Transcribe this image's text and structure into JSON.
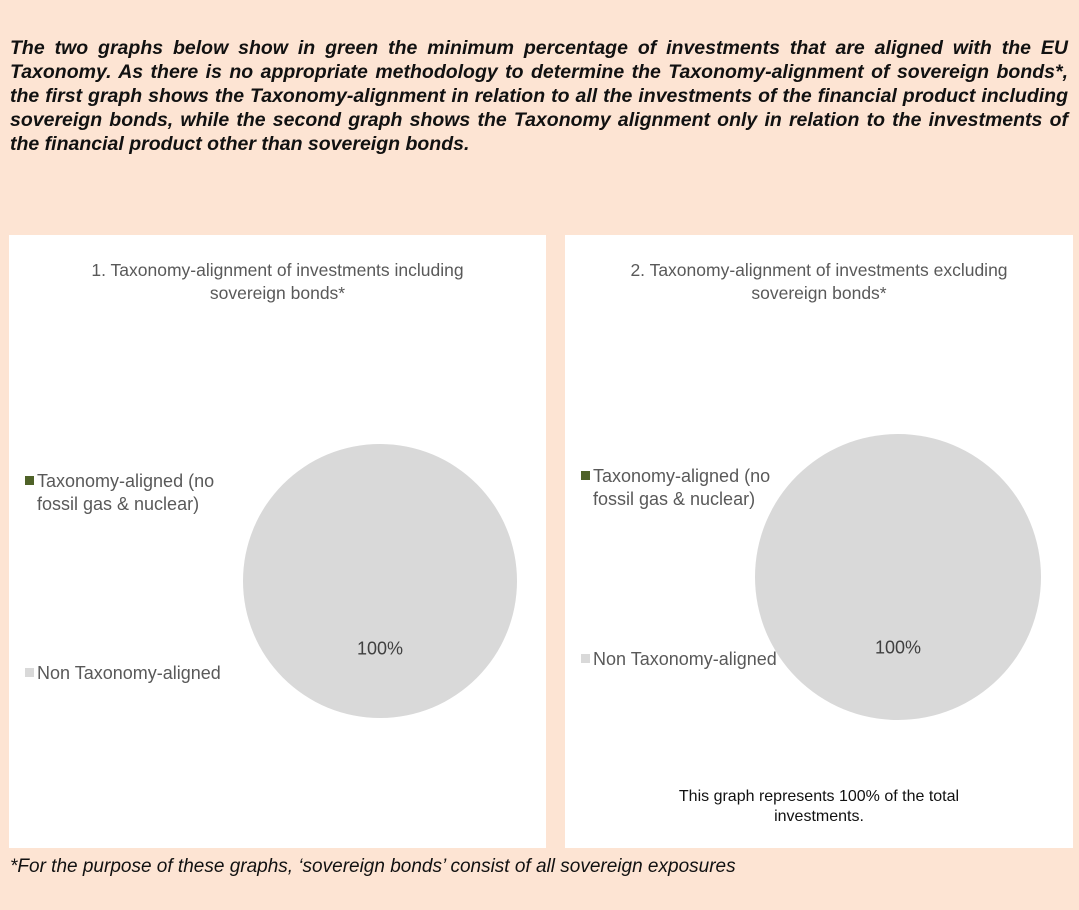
{
  "intro": "The two graphs below show in green the minimum percentage of investments that are aligned with the EU Taxonomy. As there is no appropriate methodology to determine the Taxonomy-alignment of sovereign bonds*, the first graph shows the Taxonomy-alignment in relation to all the investments of the financial product including sovereign bonds, while the second graph shows the Taxonomy alignment only in relation to the investments of the financial product other than sovereign bonds.",
  "chart_data": [
    {
      "type": "pie",
      "title": "1. Taxonomy-alignment of investments including sovereign bonds*",
      "categories": [
        "Taxonomy-aligned (no fossil gas & nuclear)",
        "Non Taxonomy-aligned"
      ],
      "values": [
        0,
        100
      ],
      "value_labels": [
        null,
        "100%"
      ],
      "colors": [
        "#4f6228",
        "#d9d9d9"
      ]
    },
    {
      "type": "pie",
      "title": "2. Taxonomy-alignment of investments excluding sovereign bonds*",
      "categories": [
        "Taxonomy-aligned (no fossil gas & nuclear)",
        "Non Taxonomy-aligned"
      ],
      "values": [
        0,
        100
      ],
      "value_labels": [
        null,
        "100%"
      ],
      "colors": [
        "#4f6228",
        "#d9d9d9"
      ],
      "note": "This graph represents 100% of the total investments."
    }
  ],
  "footnote": "*For the purpose of these graphs, ‘sovereign bonds’ consist of all sovereign exposures"
}
